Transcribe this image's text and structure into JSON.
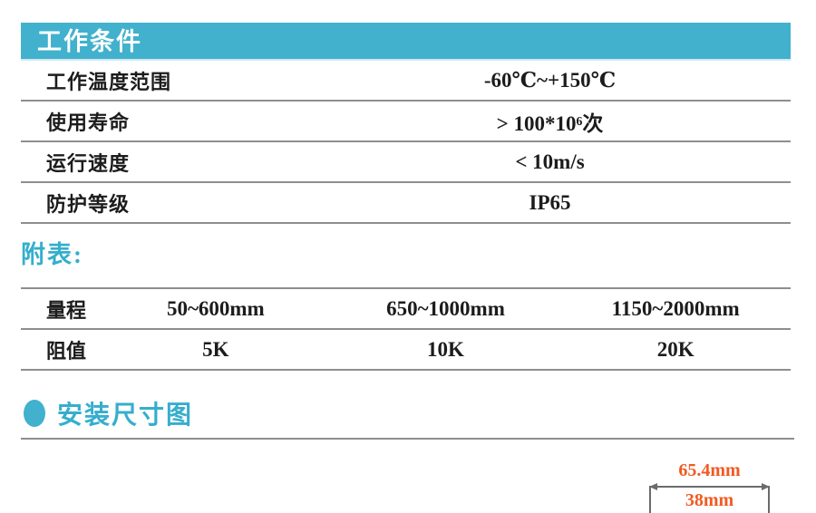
{
  "colors": {
    "teal": "#41b1cd",
    "teal_text": "#35aecd",
    "orange": "#f15a22",
    "rule_gray": "#8e8e8e",
    "text_dark": "#1c1c1c"
  },
  "working_conditions": {
    "title": "工作条件",
    "rows": [
      {
        "label": "工作温度范围",
        "value": "-60℃~+150℃"
      },
      {
        "label": "使用寿命",
        "value": "> 100*10⁶次"
      },
      {
        "label": "运行速度",
        "value": "< 10m/s"
      },
      {
        "label": "防护等级",
        "value": "IP65"
      }
    ]
  },
  "appendix": {
    "title": "附表:",
    "rows": [
      {
        "label": "量程",
        "values": [
          "50~600mm",
          "650~1000mm",
          "1150~2000mm"
        ]
      },
      {
        "label": "阻值",
        "values": [
          "5K",
          "10K",
          "20K"
        ]
      }
    ]
  },
  "installation": {
    "title": "安装尺寸图",
    "dimensions": {
      "outer_width": "65.4mm",
      "inner_width": "38mm"
    }
  }
}
